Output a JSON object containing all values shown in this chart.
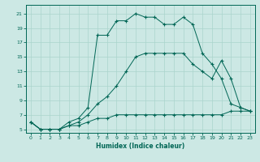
{
  "xlabel": "Humidex (Indice chaleur)",
  "bg_color": "#cce8e4",
  "grid_color": "#aad4cc",
  "line_color": "#006655",
  "xlim": [
    -0.5,
    23.5
  ],
  "ylim": [
    4.5,
    22.2
  ],
  "xticks": [
    0,
    1,
    2,
    3,
    4,
    5,
    6,
    7,
    8,
    9,
    10,
    11,
    12,
    13,
    14,
    15,
    16,
    17,
    18,
    19,
    20,
    21,
    22,
    23
  ],
  "yticks": [
    5,
    7,
    9,
    11,
    13,
    15,
    17,
    19,
    21
  ],
  "line1_x": [
    0,
    1,
    2,
    3,
    4,
    5,
    6,
    7,
    8,
    9,
    10,
    11,
    12,
    13,
    14,
    15,
    16,
    17,
    18,
    19,
    20,
    21,
    22,
    23
  ],
  "line1_y": [
    6.0,
    5.0,
    5.0,
    5.0,
    5.5,
    5.5,
    6.0,
    6.5,
    6.5,
    7.0,
    7.0,
    7.0,
    7.0,
    7.0,
    7.0,
    7.0,
    7.0,
    7.0,
    7.0,
    7.0,
    7.0,
    7.5,
    7.5,
    7.5
  ],
  "line2_x": [
    0,
    1,
    2,
    3,
    4,
    5,
    6,
    7,
    8,
    9,
    10,
    11,
    12,
    13,
    14,
    15,
    16,
    17,
    18,
    19,
    20,
    21,
    22,
    23
  ],
  "line2_y": [
    6.0,
    5.0,
    5.0,
    5.0,
    5.5,
    6.0,
    7.0,
    8.5,
    9.5,
    11.0,
    13.0,
    15.0,
    15.5,
    15.5,
    15.5,
    15.5,
    15.5,
    14.0,
    13.0,
    12.0,
    14.5,
    12.0,
    8.0,
    7.5
  ],
  "line3_x": [
    0,
    1,
    2,
    3,
    4,
    5,
    6,
    7,
    8,
    9,
    10,
    11,
    12,
    13,
    14,
    15,
    16,
    17,
    18,
    19,
    20,
    21,
    22,
    23
  ],
  "line3_y": [
    6.0,
    5.0,
    5.0,
    5.0,
    6.0,
    6.5,
    8.0,
    18.0,
    18.0,
    20.0,
    20.0,
    21.0,
    20.5,
    20.5,
    19.5,
    19.5,
    20.5,
    19.5,
    15.5,
    14.0,
    12.0,
    8.5,
    8.0,
    7.5
  ]
}
